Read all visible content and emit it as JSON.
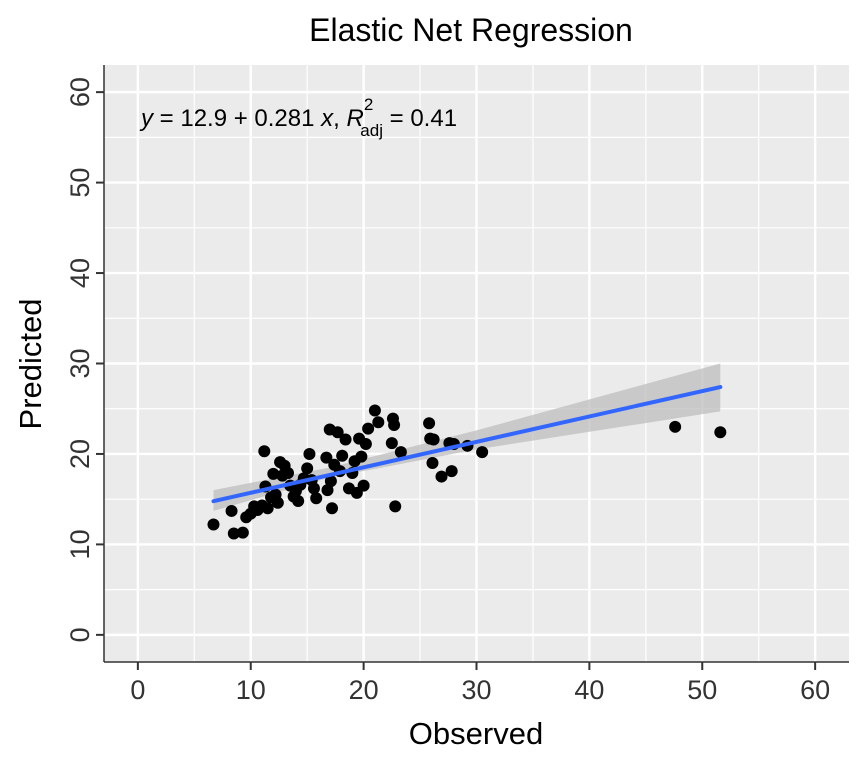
{
  "chart_data": {
    "type": "scatter",
    "title": "Elastic Net Regression",
    "xlabel": "Observed",
    "ylabel": "Predicted",
    "xlim": [
      -3,
      63
    ],
    "ylim": [
      -3,
      63
    ],
    "x_ticks": [
      0,
      10,
      20,
      30,
      40,
      50,
      60
    ],
    "y_ticks": [
      0,
      10,
      20,
      30,
      40,
      50,
      60
    ],
    "x_tick_labels": [
      "0",
      "10",
      "20",
      "30",
      "40",
      "50",
      "60"
    ],
    "y_tick_labels": [
      "0",
      "10",
      "20",
      "30",
      "40",
      "50",
      "60"
    ],
    "grid": true,
    "panel_background": "#EBEBEB",
    "grid_color": "#FFFFFF",
    "point_color": "#000000",
    "fit_line_color": "#3366FF",
    "ribbon_color": "#BEBEBE",
    "equation": {
      "y_var": "y",
      "eq_body": " = 12.9 + 0.281 ",
      "x_var": "x",
      "sep": ", ",
      "r_symbol": "R",
      "r_sup": "2",
      "r_sub": "adj",
      "r_value": " = 0.41"
    },
    "fit": {
      "intercept": 12.9,
      "slope": 0.281,
      "x_range": [
        6.7,
        51.6
      ],
      "ci_lower": [
        {
          "x": 6.7,
          "y": 13.7
        },
        {
          "x": 17.0,
          "y": 17.4
        },
        {
          "x": 30.0,
          "y": 20.5
        },
        {
          "x": 51.6,
          "y": 24.7
        }
      ],
      "ci_upper": [
        {
          "x": 6.7,
          "y": 16.0
        },
        {
          "x": 17.0,
          "y": 18.5
        },
        {
          "x": 30.0,
          "y": 22.6
        },
        {
          "x": 51.6,
          "y": 30.0
        }
      ]
    },
    "points": [
      {
        "x": 6.7,
        "y": 12.2
      },
      {
        "x": 8.3,
        "y": 13.7
      },
      {
        "x": 8.5,
        "y": 11.2
      },
      {
        "x": 9.3,
        "y": 11.3
      },
      {
        "x": 9.6,
        "y": 13.0
      },
      {
        "x": 10.0,
        "y": 13.4
      },
      {
        "x": 10.3,
        "y": 14.2
      },
      {
        "x": 10.6,
        "y": 13.8
      },
      {
        "x": 11.0,
        "y": 14.3
      },
      {
        "x": 11.2,
        "y": 20.3
      },
      {
        "x": 11.3,
        "y": 16.4
      },
      {
        "x": 11.5,
        "y": 14.0
      },
      {
        "x": 11.8,
        "y": 15.2
      },
      {
        "x": 12.0,
        "y": 17.8
      },
      {
        "x": 12.2,
        "y": 15.5
      },
      {
        "x": 12.4,
        "y": 14.6
      },
      {
        "x": 12.6,
        "y": 19.1
      },
      {
        "x": 12.8,
        "y": 17.6
      },
      {
        "x": 13.0,
        "y": 18.7
      },
      {
        "x": 13.3,
        "y": 17.9
      },
      {
        "x": 13.5,
        "y": 16.5
      },
      {
        "x": 13.8,
        "y": 15.3
      },
      {
        "x": 14.0,
        "y": 15.9
      },
      {
        "x": 14.2,
        "y": 14.8
      },
      {
        "x": 14.4,
        "y": 16.6
      },
      {
        "x": 14.7,
        "y": 17.3
      },
      {
        "x": 15.0,
        "y": 18.4
      },
      {
        "x": 15.2,
        "y": 20.0
      },
      {
        "x": 15.4,
        "y": 17.1
      },
      {
        "x": 15.6,
        "y": 16.2
      },
      {
        "x": 15.8,
        "y": 15.1
      },
      {
        "x": 16.7,
        "y": 19.6
      },
      {
        "x": 16.8,
        "y": 16.0
      },
      {
        "x": 17.0,
        "y": 22.7
      },
      {
        "x": 17.1,
        "y": 17.0
      },
      {
        "x": 17.2,
        "y": 14.0
      },
      {
        "x": 17.4,
        "y": 18.8
      },
      {
        "x": 17.7,
        "y": 22.4
      },
      {
        "x": 17.9,
        "y": 18.1
      },
      {
        "x": 18.1,
        "y": 19.8
      },
      {
        "x": 18.4,
        "y": 21.6
      },
      {
        "x": 18.7,
        "y": 16.2
      },
      {
        "x": 19.0,
        "y": 17.9
      },
      {
        "x": 19.2,
        "y": 19.2
      },
      {
        "x": 19.4,
        "y": 15.7
      },
      {
        "x": 19.6,
        "y": 21.7
      },
      {
        "x": 19.8,
        "y": 19.7
      },
      {
        "x": 20.0,
        "y": 16.5
      },
      {
        "x": 20.2,
        "y": 21.1
      },
      {
        "x": 20.4,
        "y": 22.8
      },
      {
        "x": 21.0,
        "y": 24.8
      },
      {
        "x": 21.3,
        "y": 23.5
      },
      {
        "x": 22.5,
        "y": 21.2
      },
      {
        "x": 22.6,
        "y": 23.9
      },
      {
        "x": 22.7,
        "y": 23.2
      },
      {
        "x": 22.8,
        "y": 14.2
      },
      {
        "x": 23.3,
        "y": 20.2
      },
      {
        "x": 25.8,
        "y": 23.4
      },
      {
        "x": 25.9,
        "y": 21.7
      },
      {
        "x": 26.1,
        "y": 19.0
      },
      {
        "x": 26.2,
        "y": 21.6
      },
      {
        "x": 26.9,
        "y": 17.5
      },
      {
        "x": 27.6,
        "y": 21.2
      },
      {
        "x": 27.8,
        "y": 18.1
      },
      {
        "x": 28.0,
        "y": 21.1
      },
      {
        "x": 29.2,
        "y": 20.9
      },
      {
        "x": 30.5,
        "y": 20.2
      },
      {
        "x": 47.6,
        "y": 23.0
      },
      {
        "x": 51.6,
        "y": 22.4
      }
    ]
  }
}
